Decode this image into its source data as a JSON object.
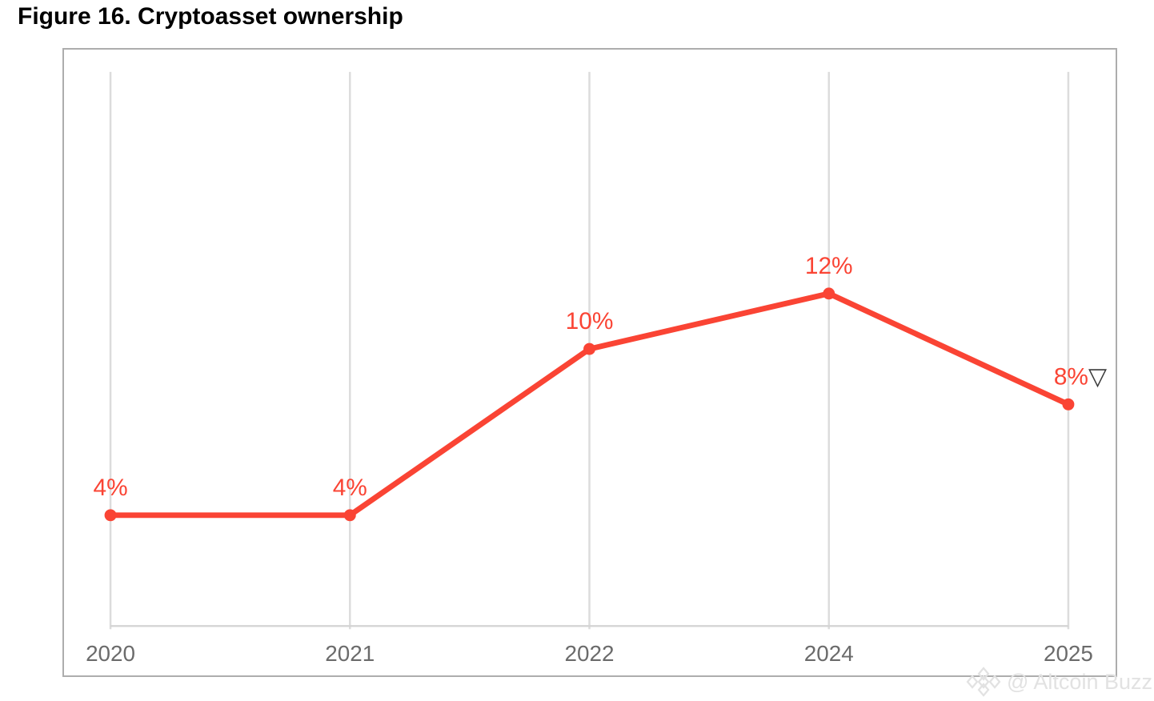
{
  "page": {
    "title": "Figure 16. Cryptoasset ownership"
  },
  "watermark": {
    "icon": "binance-diamond-logo",
    "text": "@ Altcoin Buzz"
  },
  "chart_data": {
    "type": "line",
    "title": "Figure 16. Cryptoasset ownership",
    "categories": [
      "2020",
      "2021",
      "2022",
      "2024",
      "2025"
    ],
    "values": [
      4,
      4,
      10,
      12,
      8
    ],
    "point_labels": [
      "4%",
      "4%",
      "10%",
      "12%",
      "8%"
    ],
    "last_point_marker": "▽",
    "xlabel": "",
    "ylabel": "",
    "ylim": [
      0,
      20
    ],
    "grid": "vertical-only",
    "legend": "none",
    "colors": {
      "line": "#fa4434",
      "point": "#fa4434",
      "point_label": "#fa4434",
      "last_marker": "#3a3a3a",
      "gridline": "#dcdcdc",
      "axis_line": "#d4d4d4",
      "tick_label": "#6b6b6b",
      "panel_border": "#adadad"
    }
  }
}
